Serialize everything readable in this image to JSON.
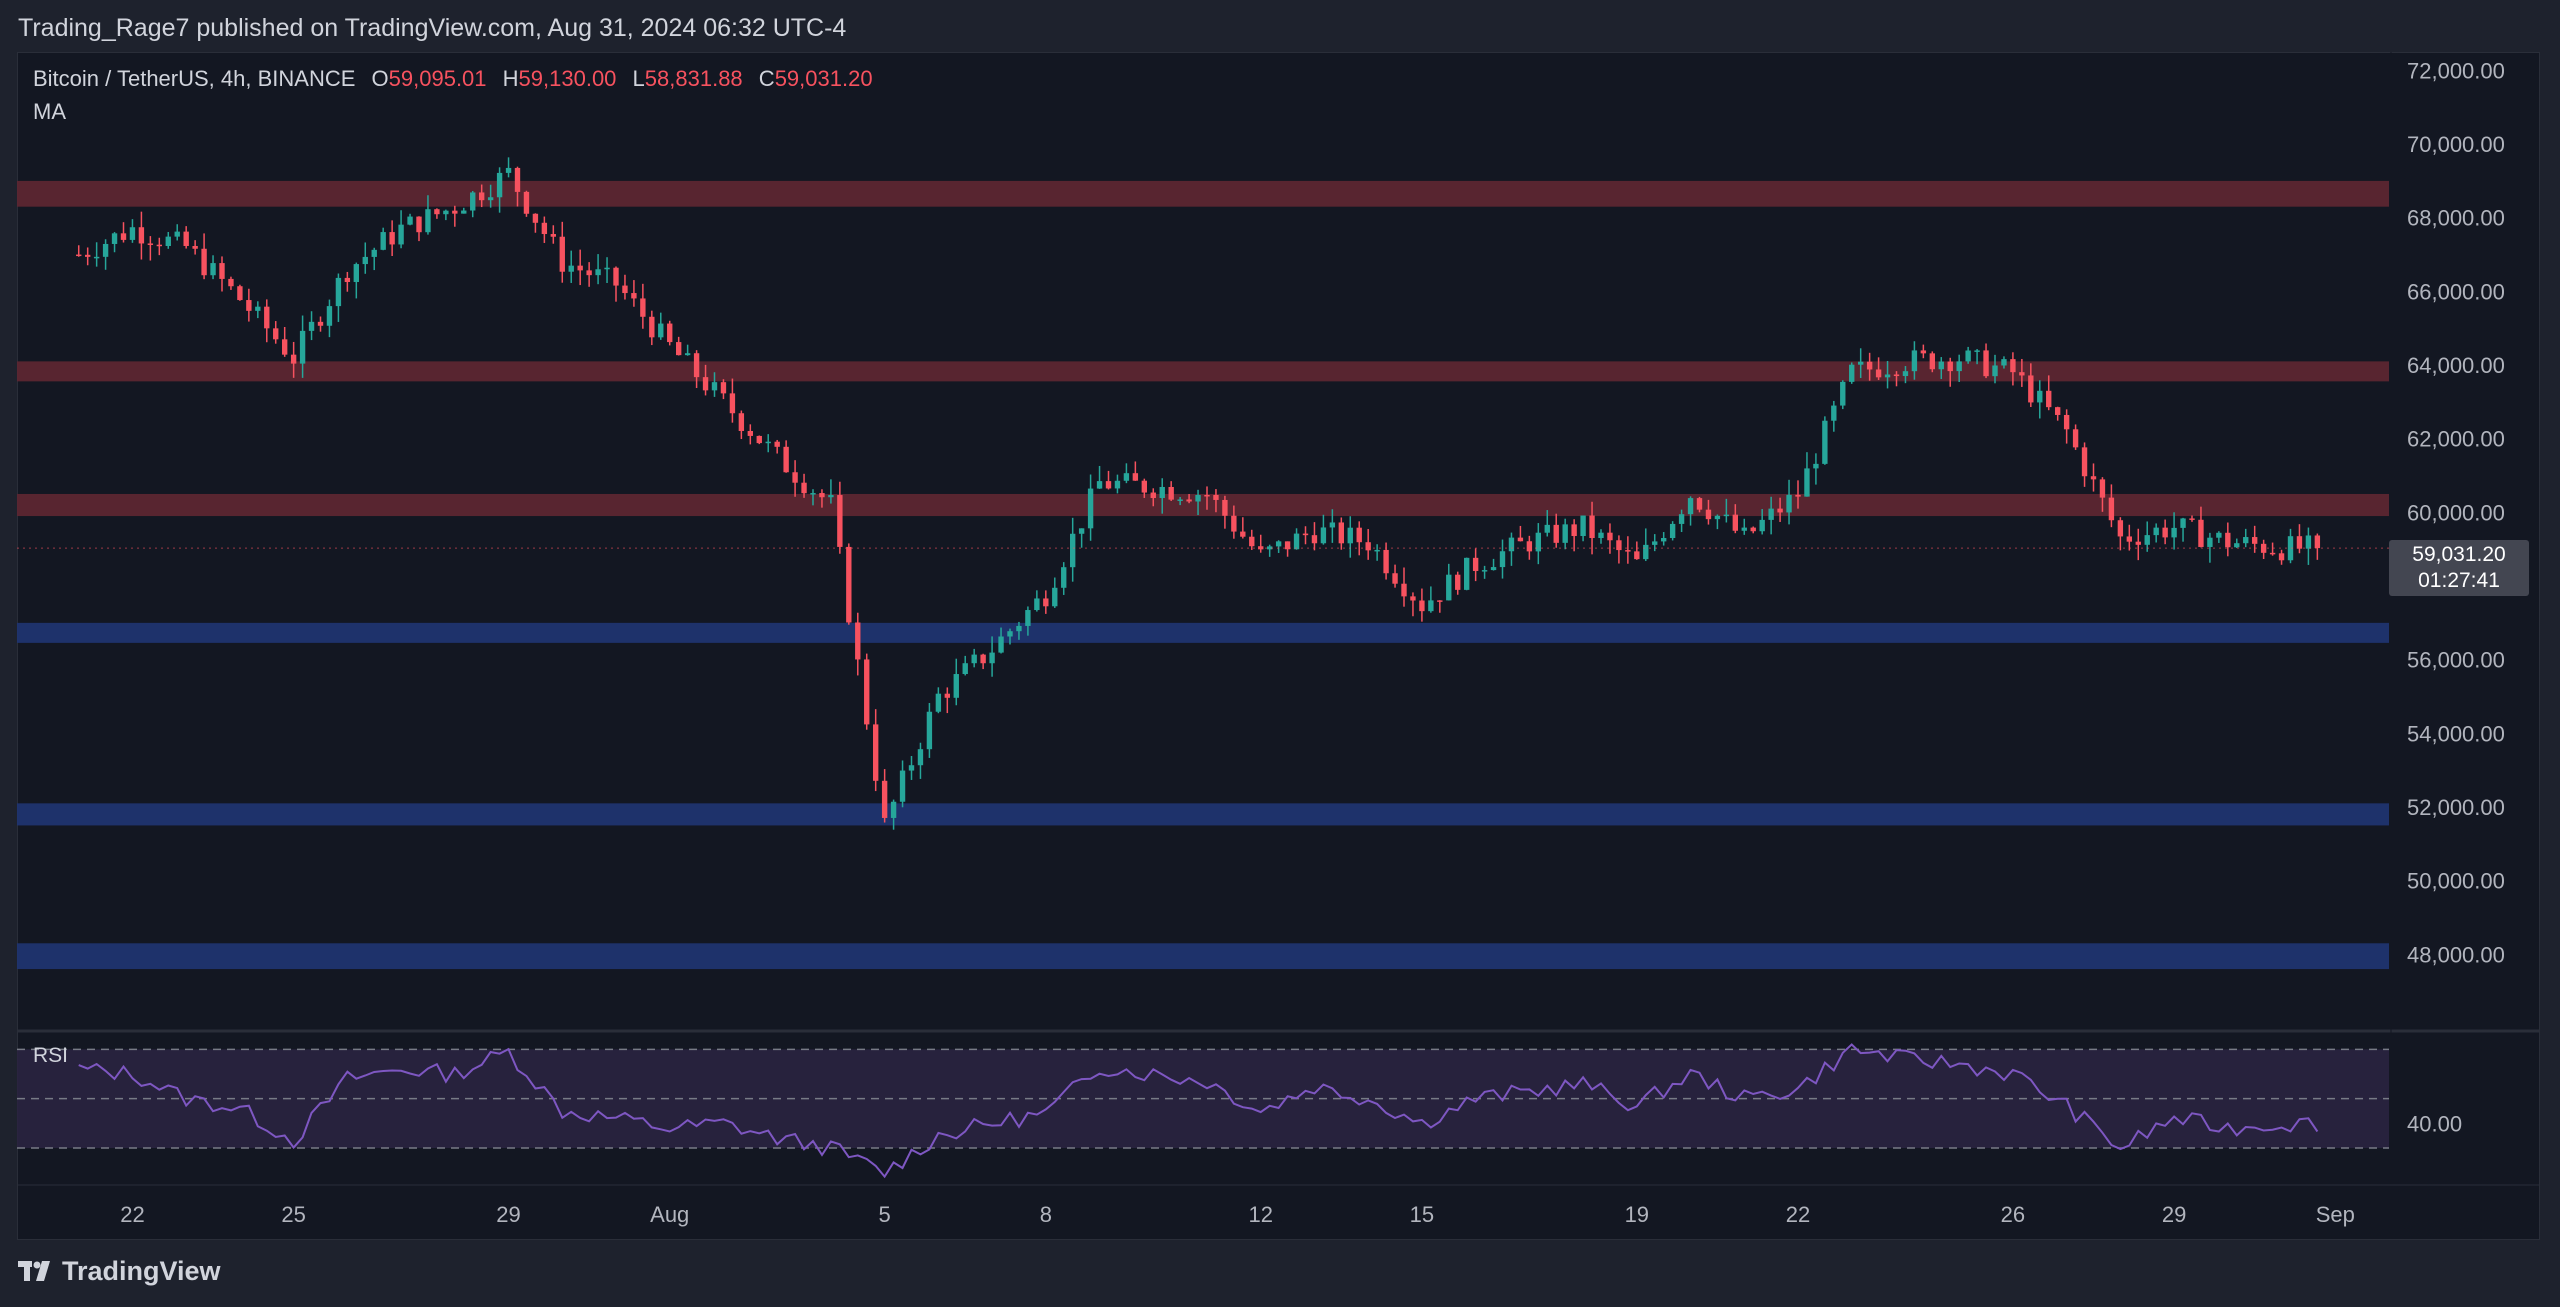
{
  "publisher_line": "Trading_Rage7 published on TradingView.com, Aug 31, 2024 06:32 UTC-4",
  "legend": {
    "symbol": "Bitcoin / TetherUS, 4h, BINANCE",
    "open_label": "O",
    "open": "59,095.01",
    "high_label": "H",
    "high": "59,130.00",
    "low_label": "L",
    "low": "58,831.88",
    "close_label": "C",
    "close": "59,031.20",
    "indicator": "MA"
  },
  "rsi_label": "RSI",
  "price_tag": {
    "price": "59,031.20",
    "countdown": "01:27:41"
  },
  "branding": {
    "logo_text": "TradingView",
    "logo_icon": "tradingview-logo-icon"
  },
  "colors": {
    "up": "#26a69a",
    "down": "#f7525f",
    "resistance_zone": "#5c2632",
    "support_zone": "#1f3470",
    "rsi_line": "#7e57c2",
    "rsi_band": "#2a2440"
  },
  "chart_data": {
    "type": "candlestick",
    "symbol": "Bitcoin / TetherUS",
    "timeframe": "4h",
    "ylim": [
      46000,
      72500
    ],
    "y_ticks": [
      72000,
      70000,
      68000,
      66000,
      64000,
      62000,
      60000,
      56000,
      54000,
      52000,
      50000,
      48000
    ],
    "y_tick_labels": [
      "72,000.00",
      "70,000.00",
      "68,000.00",
      "66,000.00",
      "64,000.00",
      "62,000.00",
      "60,000.00",
      "56,000.00",
      "54,000.00",
      "52,000.00",
      "50,000.00",
      "48,000.00"
    ],
    "x_ticks": [
      {
        "label": "22",
        "x": "2024-07-22"
      },
      {
        "label": "25",
        "x": "2024-07-25"
      },
      {
        "label": "29",
        "x": "2024-07-29"
      },
      {
        "label": "Aug",
        "x": "2024-08-01"
      },
      {
        "label": "5",
        "x": "2024-08-05"
      },
      {
        "label": "8",
        "x": "2024-08-08"
      },
      {
        "label": "12",
        "x": "2024-08-12"
      },
      {
        "label": "15",
        "x": "2024-08-15"
      },
      {
        "label": "19",
        "x": "2024-08-19"
      },
      {
        "label": "22",
        "x": "2024-08-22"
      },
      {
        "label": "26",
        "x": "2024-08-26"
      },
      {
        "label": "29",
        "x": "2024-08-29"
      },
      {
        "label": "Sep",
        "x": "2024-09-01"
      }
    ],
    "zones": [
      {
        "kind": "resistance",
        "from": 68300,
        "to": 69000
      },
      {
        "kind": "resistance",
        "from": 63600,
        "to": 64100
      },
      {
        "kind": "resistance",
        "from": 59900,
        "to": 60500
      },
      {
        "kind": "support",
        "from": 56500,
        "to": 57000
      },
      {
        "kind": "support",
        "from": 51500,
        "to": 52100
      },
      {
        "kind": "support",
        "from": 47600,
        "to": 48300
      }
    ],
    "close_path": [
      [
        "2024-07-21",
        67000
      ],
      [
        "2024-07-22",
        67700
      ],
      [
        "2024-07-23",
        67200
      ],
      [
        "2024-07-24",
        65800
      ],
      [
        "2024-07-25",
        64200
      ],
      [
        "2024-07-26",
        66600
      ],
      [
        "2024-07-27",
        67700
      ],
      [
        "2024-07-28",
        68300
      ],
      [
        "2024-07-29",
        69200
      ],
      [
        "2024-07-30",
        66800
      ],
      [
        "2024-07-31",
        66200
      ],
      [
        "2024-08-01",
        64500
      ],
      [
        "2024-08-02",
        63000
      ],
      [
        "2024-08-03",
        61500
      ],
      [
        "2024-08-04",
        60200
      ],
      [
        "2024-08-05",
        51500
      ],
      [
        "2024-08-06",
        55000
      ],
      [
        "2024-08-07",
        56300
      ],
      [
        "2024-08-08",
        57800
      ],
      [
        "2024-08-09",
        60800
      ],
      [
        "2024-08-10",
        60700
      ],
      [
        "2024-08-11",
        60500
      ],
      [
        "2024-08-12",
        58800
      ],
      [
        "2024-08-13",
        59500
      ],
      [
        "2024-08-14",
        59200
      ],
      [
        "2024-08-15",
        57500
      ],
      [
        "2024-08-16",
        58600
      ],
      [
        "2024-08-17",
        59200
      ],
      [
        "2024-08-18",
        59600
      ],
      [
        "2024-08-19",
        58600
      ],
      [
        "2024-08-20",
        60500
      ],
      [
        "2024-08-21",
        59300
      ],
      [
        "2024-08-22",
        60500
      ],
      [
        "2024-08-23",
        63800
      ],
      [
        "2024-08-24",
        64100
      ],
      [
        "2024-08-25",
        64200
      ],
      [
        "2024-08-26",
        63800
      ],
      [
        "2024-08-27",
        62200
      ],
      [
        "2024-08-28",
        59300
      ],
      [
        "2024-08-29",
        59600
      ],
      [
        "2024-08-30",
        59200
      ],
      [
        "2024-08-31",
        59031
      ]
    ],
    "rsi": {
      "levels": [
        70,
        50,
        30
      ],
      "tick_labels": [
        {
          "value": 40,
          "label": "40.00"
        }
      ],
      "ylim": [
        15,
        75
      ],
      "path": [
        [
          "2024-07-21",
          62
        ],
        [
          "2024-07-22",
          60
        ],
        [
          "2024-07-23",
          50
        ],
        [
          "2024-07-24",
          46
        ],
        [
          "2024-07-25",
          33
        ],
        [
          "2024-07-26",
          58
        ],
        [
          "2024-07-27",
          62
        ],
        [
          "2024-07-28",
          60
        ],
        [
          "2024-07-29",
          69
        ],
        [
          "2024-07-30",
          45
        ],
        [
          "2024-07-31",
          42
        ],
        [
          "2024-08-01",
          38
        ],
        [
          "2024-08-02",
          40
        ],
        [
          "2024-08-03",
          34
        ],
        [
          "2024-08-04",
          30
        ],
        [
          "2024-08-05",
          20
        ],
        [
          "2024-08-06",
          35
        ],
        [
          "2024-08-07",
          40
        ],
        [
          "2024-08-08",
          44
        ],
        [
          "2024-08-09",
          63
        ],
        [
          "2024-08-10",
          60
        ],
        [
          "2024-08-11",
          57
        ],
        [
          "2024-08-12",
          45
        ],
        [
          "2024-08-13",
          55
        ],
        [
          "2024-08-14",
          50
        ],
        [
          "2024-08-15",
          40
        ],
        [
          "2024-08-16",
          50
        ],
        [
          "2024-08-17",
          53
        ],
        [
          "2024-08-18",
          56
        ],
        [
          "2024-08-19",
          47
        ],
        [
          "2024-08-20",
          60
        ],
        [
          "2024-08-21",
          50
        ],
        [
          "2024-08-22",
          54
        ],
        [
          "2024-08-23",
          70
        ],
        [
          "2024-08-24",
          66
        ],
        [
          "2024-08-25",
          64
        ],
        [
          "2024-08-26",
          60
        ],
        [
          "2024-08-27",
          47
        ],
        [
          "2024-08-28",
          30
        ],
        [
          "2024-08-29",
          42
        ],
        [
          "2024-08-30",
          38
        ],
        [
          "2024-08-31",
          40
        ]
      ]
    }
  }
}
